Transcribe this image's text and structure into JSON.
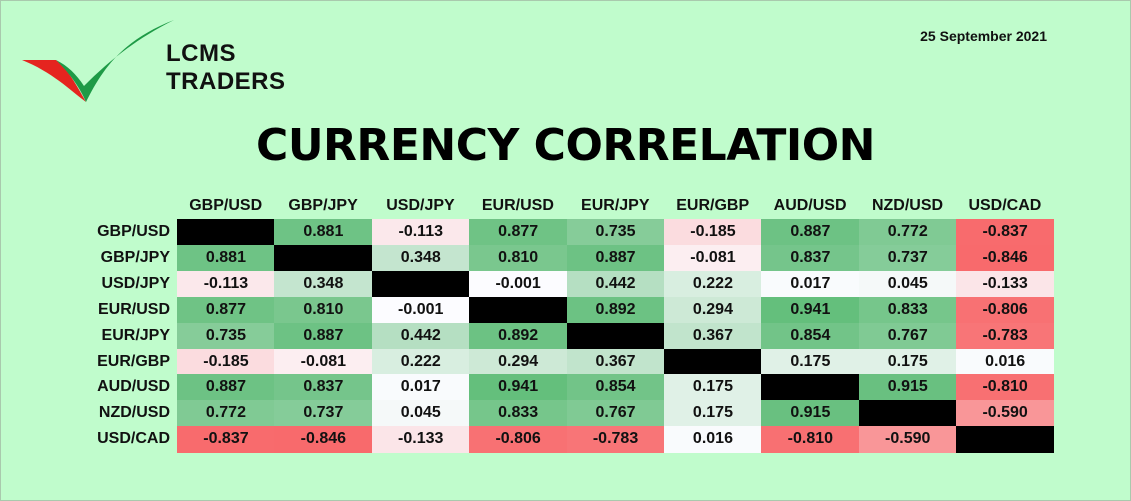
{
  "brand": {
    "line1": "LCMS",
    "line2": "TRADERS",
    "logo_icon": "checkmark-swoosh-logo-icon",
    "colors": {
      "green": "#1e9a46",
      "red": "#e5241f"
    }
  },
  "date": "25 September 2021",
  "title": "CURRENCY CORRELATION",
  "colors": {
    "background": "#c0fccc",
    "diagonal": "#000000",
    "positive": "#63be7b",
    "negative": "#f8696b",
    "neutral": "#fcfcff"
  },
  "chart_data": {
    "type": "heatmap",
    "title": "CURRENCY CORRELATION",
    "columns": [
      "GBP/USD",
      "GBP/JPY",
      "USD/JPY",
      "EUR/USD",
      "EUR/JPY",
      "EUR/GBP",
      "AUD/USD",
      "NZD/USD",
      "USD/CAD"
    ],
    "rows": [
      "GBP/USD",
      "GBP/JPY",
      "USD/JPY",
      "EUR/USD",
      "EUR/JPY",
      "EUR/GBP",
      "AUD/USD",
      "NZD/USD",
      "USD/CAD"
    ],
    "values": [
      [
        null,
        0.881,
        -0.113,
        0.877,
        0.735,
        -0.185,
        0.887,
        0.772,
        -0.837
      ],
      [
        0.881,
        null,
        0.348,
        0.81,
        0.887,
        -0.081,
        0.837,
        0.737,
        -0.846
      ],
      [
        -0.113,
        0.348,
        null,
        -0.001,
        0.442,
        0.222,
        0.017,
        0.045,
        -0.133
      ],
      [
        0.877,
        0.81,
        -0.001,
        null,
        0.892,
        0.294,
        0.941,
        0.833,
        -0.806
      ],
      [
        0.735,
        0.887,
        0.442,
        0.892,
        null,
        0.367,
        0.854,
        0.767,
        -0.783
      ],
      [
        -0.185,
        -0.081,
        0.222,
        0.294,
        0.367,
        null,
        0.175,
        0.175,
        0.016
      ],
      [
        0.887,
        0.837,
        0.017,
        0.941,
        0.854,
        0.175,
        null,
        0.915,
        -0.81
      ],
      [
        0.772,
        0.737,
        0.045,
        0.833,
        0.767,
        0.175,
        0.915,
        null,
        -0.59
      ],
      [
        -0.837,
        -0.846,
        -0.133,
        -0.806,
        -0.783,
        0.016,
        -0.81,
        -0.59,
        null
      ]
    ],
    "labels": [
      [
        "",
        "0.881",
        "-0.113",
        "0.877",
        "0.735",
        "-0.185",
        "0.887",
        "0.772",
        "-0.837"
      ],
      [
        "0.881",
        "",
        "0.348",
        "0.810",
        "0.887",
        "-0.081",
        "0.837",
        "0.737",
        "-0.846"
      ],
      [
        "-0.113",
        "0.348",
        "",
        "-0.001",
        "0.442",
        "0.222",
        "0.017",
        "0.045",
        "-0.133"
      ],
      [
        "0.877",
        "0.810",
        "-0.001",
        "",
        "0.892",
        "0.294",
        "0.941",
        "0.833",
        "-0.806"
      ],
      [
        "0.735",
        "0.887",
        "0.442",
        "0.892",
        "",
        "0.367",
        "0.854",
        "0.767",
        "-0.783"
      ],
      [
        "-0.185",
        "-0.081",
        "0.222",
        "0.294",
        "0.367",
        "",
        "0.175",
        "0.175",
        "0.016"
      ],
      [
        "0.887",
        "0.837",
        "0.017",
        "0.941",
        "0.854",
        "0.175",
        "",
        "0.915",
        "-0.810"
      ],
      [
        "0.772",
        "0.737",
        "0.045",
        "0.833",
        "0.767",
        "0.175",
        "0.915",
        "",
        "-0.590"
      ],
      [
        "-0.837",
        "-0.846",
        "-0.133",
        "-0.806",
        "-0.783",
        "0.016",
        "-0.810",
        "-0.590",
        ""
      ]
    ]
  }
}
